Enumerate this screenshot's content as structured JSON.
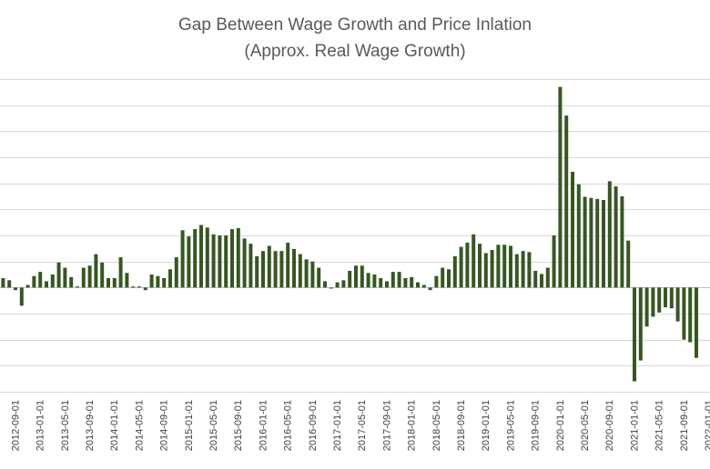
{
  "chart_data": {
    "type": "bar",
    "title": "Gap Between Wage Growth and Price Inlation",
    "subtitle": "(Approx. Real Wage Growth)",
    "xlabel": "",
    "ylabel": "",
    "ylim": [
      -2.0,
      4.0
    ],
    "grid": true,
    "legend": "none",
    "bar_color": "#375623",
    "x_tick_labels": [
      "2012-09-01",
      "2013-01-01",
      "2013-05-01",
      "2013-09-01",
      "2014-01-01",
      "2014-05-01",
      "2014-09-01",
      "2015-01-01",
      "2015-05-01",
      "2015-09-01",
      "2016-01-01",
      "2016-05-01",
      "2016-09-01",
      "2017-01-01",
      "2017-05-01",
      "2017-09-01",
      "2018-01-01",
      "2018-05-01",
      "2018-09-01",
      "2019-01-01",
      "2019-05-01",
      "2019-09-01",
      "2020-01-01",
      "2020-05-01",
      "2020-09-01",
      "2021-01-01",
      "2021-05-01",
      "2021-09-01",
      "2022-01-01"
    ],
    "series": [
      {
        "values": [
          0.18,
          0.14,
          -0.05,
          -0.35,
          0.05,
          0.22,
          0.3,
          0.12,
          0.25,
          0.48,
          0.38,
          0.2,
          0.02,
          0.38,
          0.42,
          0.64,
          0.48,
          0.18,
          0.18,
          0.58,
          0.28,
          0.02,
          0.02,
          -0.05,
          0.25,
          0.22,
          0.18,
          0.35,
          0.58,
          1.1,
          0.98,
          1.12,
          1.2,
          1.15,
          1.02,
          1.0,
          1.0,
          1.12,
          1.14,
          0.94,
          0.84,
          0.6,
          0.7,
          0.8,
          0.7,
          0.7,
          0.86,
          0.74,
          0.64,
          0.54,
          0.5,
          0.38,
          0.12,
          -0.02,
          0.1,
          0.14,
          0.32,
          0.42,
          0.42,
          0.28,
          0.25,
          0.18,
          0.12,
          0.3,
          0.3,
          0.18,
          0.2,
          0.1,
          0.05,
          -0.05,
          0.22,
          0.38,
          0.35,
          0.6,
          0.78,
          0.86,
          1.02,
          0.84,
          0.66,
          0.72,
          0.82,
          0.82,
          0.8,
          0.64,
          0.7,
          0.68,
          0.32,
          0.26,
          0.38,
          1.0,
          3.85,
          3.3,
          2.22,
          1.98,
          1.74,
          1.72,
          1.7,
          1.68,
          2.04,
          1.94,
          1.75,
          0.9,
          -1.8,
          -1.4,
          -0.75,
          -0.56,
          -0.48,
          -0.38,
          -0.4,
          -0.65,
          -1.0,
          -1.05,
          -1.35
        ]
      }
    ]
  }
}
